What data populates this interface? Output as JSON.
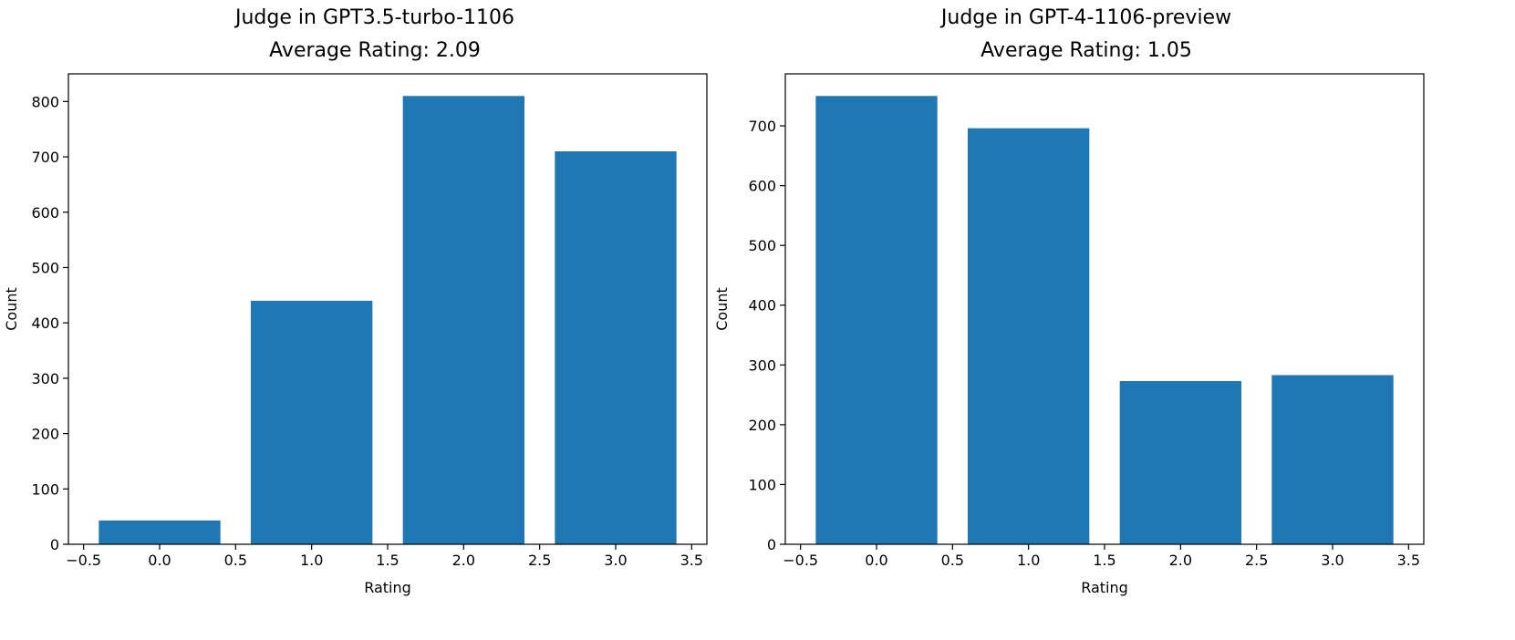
{
  "figure": {
    "bar_color": "#1f77b4"
  },
  "chart_data": [
    {
      "type": "bar",
      "title": "Judge in GPT3.5-turbo-1106",
      "subtitle": "Average Rating: 2.09",
      "xlabel": "Rating",
      "ylabel": "Count",
      "categories": [
        0,
        1,
        2,
        3
      ],
      "values": [
        43,
        440,
        810,
        710
      ],
      "bar_width": 0.8,
      "xlim": [
        -0.6,
        3.6
      ],
      "ylim": [
        0,
        850
      ],
      "xticks": [
        -0.5,
        0.0,
        0.5,
        1.0,
        1.5,
        2.0,
        2.5,
        3.0,
        3.5
      ],
      "xtick_labels": [
        "−0.5",
        "0.0",
        "0.5",
        "1.0",
        "1.5",
        "2.0",
        "2.5",
        "3.0",
        "3.5"
      ],
      "yticks": [
        0,
        100,
        200,
        300,
        400,
        500,
        600,
        700,
        800
      ],
      "ytick_labels": [
        "0",
        "100",
        "200",
        "300",
        "400",
        "500",
        "600",
        "700",
        "800"
      ],
      "grid": false,
      "legend": "none"
    },
    {
      "type": "bar",
      "title": "Judge in GPT-4-1106-preview",
      "subtitle": "Average Rating: 1.05",
      "xlabel": "Rating",
      "ylabel": "Count",
      "categories": [
        0,
        1,
        2,
        3
      ],
      "values": [
        750,
        696,
        273,
        283
      ],
      "bar_width": 0.8,
      "xlim": [
        -0.6,
        3.6
      ],
      "ylim": [
        0,
        787
      ],
      "xticks": [
        -0.5,
        0.0,
        0.5,
        1.0,
        1.5,
        2.0,
        2.5,
        3.0,
        3.5
      ],
      "xtick_labels": [
        "−0.5",
        "0.0",
        "0.5",
        "1.0",
        "1.5",
        "2.0",
        "2.5",
        "3.0",
        "3.5"
      ],
      "yticks": [
        0,
        100,
        200,
        300,
        400,
        500,
        600,
        700
      ],
      "ytick_labels": [
        "0",
        "100",
        "200",
        "300",
        "400",
        "500",
        "600",
        "700"
      ],
      "grid": false,
      "legend": "none"
    }
  ]
}
